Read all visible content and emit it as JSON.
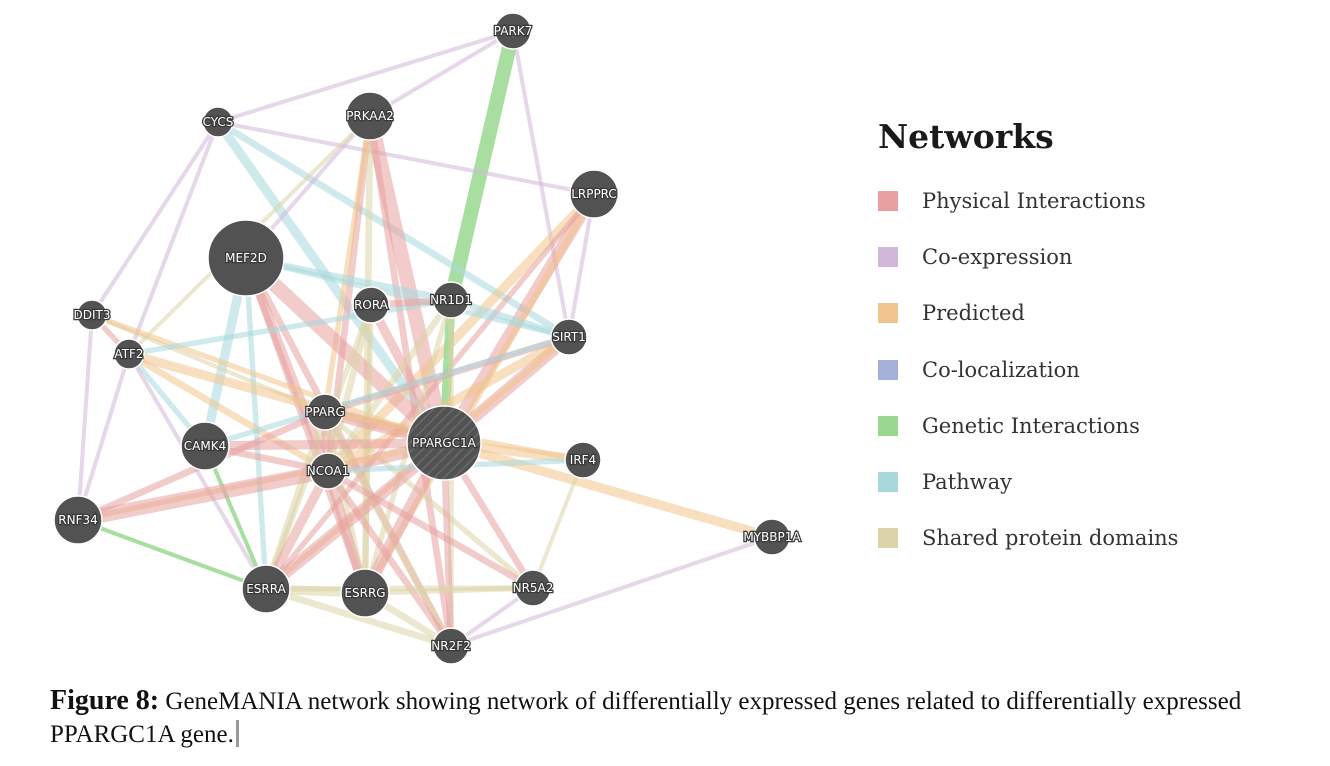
{
  "network": {
    "nodes": [
      {
        "id": "PARK7",
        "label": "PARK7",
        "size": "small"
      },
      {
        "id": "CYCS",
        "label": "CYCS",
        "size": "tiny"
      },
      {
        "id": "PRKAA2",
        "label": "PRKAA2",
        "size": "medium"
      },
      {
        "id": "LRPPRC",
        "label": "LRPPRC",
        "size": "medium"
      },
      {
        "id": "MEF2D",
        "label": "MEF2D",
        "size": "large"
      },
      {
        "id": "DDIT3",
        "label": "DDIT3",
        "size": "tiny"
      },
      {
        "id": "ATF2",
        "label": "ATF2",
        "size": "tiny"
      },
      {
        "id": "RORA",
        "label": "RORA",
        "size": "small"
      },
      {
        "id": "NR1D1",
        "label": "NR1D1",
        "size": "small"
      },
      {
        "id": "SIRT1",
        "label": "SIRT1",
        "size": "small"
      },
      {
        "id": "PPARG",
        "label": "PPARG",
        "size": "small"
      },
      {
        "id": "CAMK4",
        "label": "CAMK4",
        "size": "medium"
      },
      {
        "id": "PPARGC1A",
        "label": "PPARGC1A",
        "size": "query"
      },
      {
        "id": "NCOA1",
        "label": "NCOA1",
        "size": "small"
      },
      {
        "id": "IRF4",
        "label": "IRF4",
        "size": "small"
      },
      {
        "id": "RNF34",
        "label": "RNF34",
        "size": "medium"
      },
      {
        "id": "MYBBP1A",
        "label": "MYBBP1A",
        "size": "small"
      },
      {
        "id": "ESRRA",
        "label": "ESRRA",
        "size": "medium"
      },
      {
        "id": "ESRRG",
        "label": "ESRRG",
        "size": "medium"
      },
      {
        "id": "NR5A2",
        "label": "NR5A2",
        "size": "small"
      },
      {
        "id": "NR2F2",
        "label": "NR2F2",
        "size": "small"
      }
    ],
    "edges": [
      {
        "source": "PARK7",
        "target": "NR1D1",
        "type": "genetic",
        "weight": 5
      },
      {
        "source": "PARK7",
        "target": "CYCS",
        "type": "coexpression",
        "weight": 1
      },
      {
        "source": "PARK7",
        "target": "SIRT1",
        "type": "coexpression",
        "weight": 1
      },
      {
        "source": "PARK7",
        "target": "PRKAA2",
        "type": "coexpression",
        "weight": 1
      },
      {
        "source": "CYCS",
        "target": "LRPPRC",
        "type": "coexpression",
        "weight": 1
      },
      {
        "source": "CYCS",
        "target": "PPARGC1A",
        "type": "pathway",
        "weight": 3
      },
      {
        "source": "CYCS",
        "target": "ATF2",
        "type": "coexpression",
        "weight": 1
      },
      {
        "source": "CYCS",
        "target": "SIRT1",
        "type": "pathway",
        "weight": 2
      },
      {
        "source": "PRKAA2",
        "target": "PPARGC1A",
        "type": "physical",
        "weight": 5
      },
      {
        "source": "PRKAA2",
        "target": "NCOA1",
        "type": "physical",
        "weight": 2
      },
      {
        "source": "PRKAA2",
        "target": "ESRRG",
        "type": "shared",
        "weight": 2
      },
      {
        "source": "PRKAA2",
        "target": "PPARG",
        "type": "predicted",
        "weight": 1.5
      },
      {
        "source": "PRKAA2",
        "target": "MEF2D",
        "type": "coexpression",
        "weight": 1
      },
      {
        "source": "PRKAA2",
        "target": "NR2F2",
        "type": "physical",
        "weight": 2
      },
      {
        "source": "LRPPRC",
        "target": "PPARGC1A",
        "type": "physical",
        "weight": 4
      },
      {
        "source": "LRPPRC",
        "target": "NCOA1",
        "type": "predicted",
        "weight": 3
      },
      {
        "source": "LRPPRC",
        "target": "ESRRG",
        "type": "predicted",
        "weight": 2
      },
      {
        "source": "LRPPRC",
        "target": "ESRRA",
        "type": "physical",
        "weight": 1.5
      },
      {
        "source": "LRPPRC",
        "target": "SIRT1",
        "type": "coexpression",
        "weight": 1
      },
      {
        "source": "MEF2D",
        "target": "PPARGC1A",
        "type": "physical",
        "weight": 5
      },
      {
        "source": "MEF2D",
        "target": "NCOA1",
        "type": "physical",
        "weight": 3
      },
      {
        "source": "MEF2D",
        "target": "CAMK4",
        "type": "pathway",
        "weight": 3
      },
      {
        "source": "MEF2D",
        "target": "NR1D1",
        "type": "pathway",
        "weight": 2
      },
      {
        "source": "MEF2D",
        "target": "SIRT1",
        "type": "pathway",
        "weight": 1.5
      },
      {
        "source": "MEF2D",
        "target": "ESRRA",
        "type": "pathway",
        "weight": 1.5
      },
      {
        "source": "MEF2D",
        "target": "NR2F2",
        "type": "physical",
        "weight": 2
      },
      {
        "source": "MEF2D",
        "target": "ESRRG",
        "type": "physical",
        "weight": 2
      },
      {
        "source": "DDIT3",
        "target": "ATF2",
        "type": "physical",
        "weight": 1.5
      },
      {
        "source": "DDIT3",
        "target": "PPARG",
        "type": "shared",
        "weight": 1
      },
      {
        "source": "DDIT3",
        "target": "CYCS",
        "type": "coexpression",
        "weight": 1
      },
      {
        "source": "DDIT3",
        "target": "PPARGC1A",
        "type": "predicted",
        "weight": 1.5
      },
      {
        "source": "ATF2",
        "target": "PPARGC1A",
        "type": "predicted",
        "weight": 3
      },
      {
        "source": "ATF2",
        "target": "NCOA1",
        "type": "predicted",
        "weight": 2
      },
      {
        "source": "ATF2",
        "target": "CAMK4",
        "type": "pathway",
        "weight": 1.5
      },
      {
        "source": "ATF2",
        "target": "RNF34",
        "type": "coexpression",
        "weight": 1
      },
      {
        "source": "ATF2",
        "target": "NR1D1",
        "type": "pathway",
        "weight": 1.5
      },
      {
        "source": "ATF2",
        "target": "ESRRA",
        "type": "coexpression",
        "weight": 1
      },
      {
        "source": "ATF2",
        "target": "PRKAA2",
        "type": "shared",
        "weight": 1
      },
      {
        "source": "RORA",
        "target": "PPARGC1A",
        "type": "physical",
        "weight": 3
      },
      {
        "source": "RORA",
        "target": "NR1D1",
        "type": "physical",
        "weight": 2
      },
      {
        "source": "RORA",
        "target": "NCOA1",
        "type": "shared",
        "weight": 2
      },
      {
        "source": "RORA",
        "target": "ESRRG",
        "type": "shared",
        "weight": 1.5
      },
      {
        "source": "RORA",
        "target": "ESRRA",
        "type": "shared",
        "weight": 1.5
      },
      {
        "source": "NR1D1",
        "target": "PPARGC1A",
        "type": "genetic",
        "weight": 3
      },
      {
        "source": "NR1D1",
        "target": "SIRT1",
        "type": "pathway",
        "weight": 2
      },
      {
        "source": "NR1D1",
        "target": "NCOA1",
        "type": "shared",
        "weight": 2
      },
      {
        "source": "NR1D1",
        "target": "ESRRG",
        "type": "shared",
        "weight": 1.5
      },
      {
        "source": "NR1D1",
        "target": "NR2F2",
        "type": "shared",
        "weight": 1.5
      },
      {
        "source": "SIRT1",
        "target": "PPARGC1A",
        "type": "physical",
        "weight": 4
      },
      {
        "source": "SIRT1",
        "target": "NCOA1",
        "type": "predicted",
        "weight": 3
      },
      {
        "source": "SIRT1",
        "target": "PPARG",
        "type": "physical",
        "weight": 2
      },
      {
        "source": "SIRT1",
        "target": "ESRRA",
        "type": "predicted",
        "weight": 1.5
      },
      {
        "source": "SIRT1",
        "target": "CAMK4",
        "type": "pathway",
        "weight": 1.5
      },
      {
        "source": "PPARG",
        "target": "PPARGC1A",
        "type": "physical",
        "weight": 4
      },
      {
        "source": "PPARG",
        "target": "NCOA1",
        "type": "physical",
        "weight": 3
      },
      {
        "source": "PPARG",
        "target": "RNF34",
        "type": "physical",
        "weight": 2
      },
      {
        "source": "PPARG",
        "target": "ESRRA",
        "type": "shared",
        "weight": 2
      },
      {
        "source": "PPARG",
        "target": "ESRRG",
        "type": "shared",
        "weight": 2
      },
      {
        "source": "PPARG",
        "target": "NR2F2",
        "type": "shared",
        "weight": 2
      },
      {
        "source": "PPARG",
        "target": "NR5A2",
        "type": "shared",
        "weight": 1.5
      },
      {
        "source": "PPARG",
        "target": "IRF4",
        "type": "predicted",
        "weight": 1.5
      },
      {
        "source": "CAMK4",
        "target": "PPARGC1A",
        "type": "physical",
        "weight": 3
      },
      {
        "source": "CAMK4",
        "target": "NCOA1",
        "type": "physical",
        "weight": 2
      },
      {
        "source": "CAMK4",
        "target": "ESRRA",
        "type": "genetic",
        "weight": 1
      },
      {
        "source": "PPARGC1A",
        "target": "NCOA1",
        "type": "physical",
        "weight": 4
      },
      {
        "source": "PPARGC1A",
        "target": "IRF4",
        "type": "predicted",
        "weight": 3
      },
      {
        "source": "PPARGC1A",
        "target": "MYBBP1A",
        "type": "predicted",
        "weight": 3
      },
      {
        "source": "PPARGC1A",
        "target": "ESRRA",
        "type": "physical",
        "weight": 4
      },
      {
        "source": "PPARGC1A",
        "target": "ESRRG",
        "type": "physical",
        "weight": 4
      },
      {
        "source": "PPARGC1A",
        "target": "NR5A2",
        "type": "physical",
        "weight": 2
      },
      {
        "source": "PPARGC1A",
        "target": "NR2F2",
        "type": "physical",
        "weight": 2
      },
      {
        "source": "PPARGC1A",
        "target": "RNF34",
        "type": "predicted",
        "weight": 1.5
      },
      {
        "source": "NCOA1",
        "target": "RNF34",
        "type": "physical",
        "weight": 5
      },
      {
        "source": "NCOA1",
        "target": "ESRRA",
        "type": "physical",
        "weight": 3
      },
      {
        "source": "NCOA1",
        "target": "ESRRG",
        "type": "physical",
        "weight": 3
      },
      {
        "source": "NCOA1",
        "target": "NR2F2",
        "type": "physical",
        "weight": 2
      },
      {
        "source": "NCOA1",
        "target": "NR5A2",
        "type": "physical",
        "weight": 2
      },
      {
        "source": "NCOA1",
        "target": "IRF4",
        "type": "pathway",
        "weight": 1.5
      },
      {
        "source": "ESRRA",
        "target": "ESRRG",
        "type": "shared",
        "weight": 3
      },
      {
        "source": "ESRRA",
        "target": "NR2F2",
        "type": "shared",
        "weight": 2
      },
      {
        "source": "ESRRA",
        "target": "NR5A2",
        "type": "shared",
        "weight": 1.5
      },
      {
        "source": "ESRRG",
        "target": "NR2F2",
        "type": "shared",
        "weight": 2
      },
      {
        "source": "ESRRG",
        "target": "NR5A2",
        "type": "shared",
        "weight": 1.5
      },
      {
        "source": "NR5A2",
        "target": "NR2F2",
        "type": "coexpression",
        "weight": 1
      },
      {
        "source": "RNF34",
        "target": "ESRRA",
        "type": "genetic",
        "weight": 1
      },
      {
        "source": "RNF34",
        "target": "DDIT3",
        "type": "coexpression",
        "weight": 1
      },
      {
        "source": "IRF4",
        "target": "NR5A2",
        "type": "shared",
        "weight": 1
      },
      {
        "source": "MYBBP1A",
        "target": "NR2F2",
        "type": "coexpression",
        "weight": 1
      }
    ]
  },
  "legend": {
    "title": "Networks",
    "items": [
      {
        "key": "physical",
        "label": "Physical Interactions",
        "color": "#e8a0a0"
      },
      {
        "key": "coexpression",
        "label": "Co-expression",
        "color": "#d2b8d8"
      },
      {
        "key": "predicted",
        "label": "Predicted",
        "color": "#f0c48c"
      },
      {
        "key": "colocalization",
        "label": "Co-localization",
        "color": "#a4b0d8"
      },
      {
        "key": "genetic",
        "label": "Genetic Interactions",
        "color": "#9ad890"
      },
      {
        "key": "pathway",
        "label": "Pathway",
        "color": "#a8d8dc"
      },
      {
        "key": "shared",
        "label": "Shared protein domains",
        "color": "#dcd4a8"
      }
    ]
  },
  "colors": {
    "node_fill": "#525252",
    "node_stroke": "#ffffff"
  },
  "caption": {
    "label": "Figure 8:",
    "text": " GeneMANIA network showing network of differentially expressed genes related to differentially expressed PPARGC1A gene."
  }
}
